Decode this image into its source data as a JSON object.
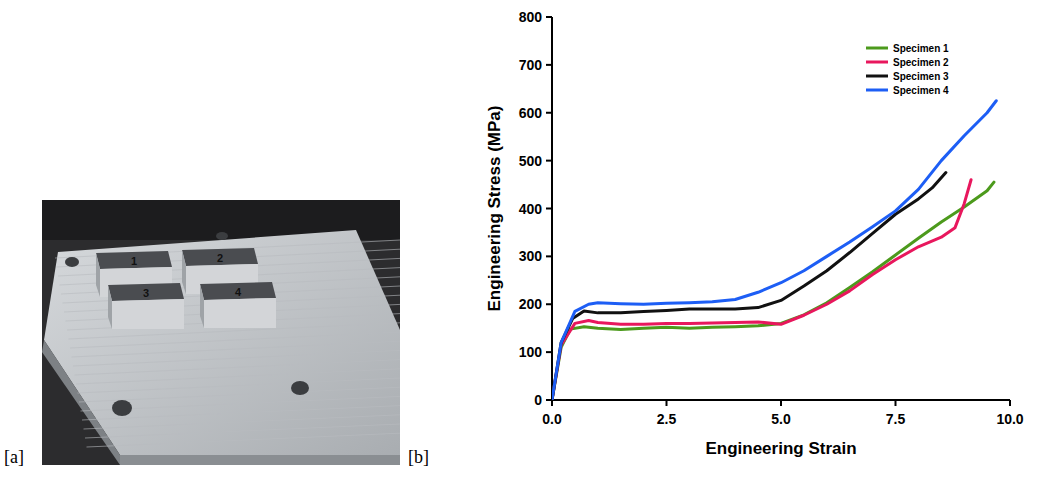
{
  "panels": {
    "a": {
      "label": "[a]",
      "specimen_labels": [
        "1",
        "2",
        "3",
        "4"
      ]
    },
    "b": {
      "label": "[b]"
    }
  },
  "chart_data": {
    "type": "line",
    "x_label": "Engineering Strain",
    "y_label": "Engineering Stress (MPa)",
    "xlim": [
      0,
      10
    ],
    "xticks": [
      {
        "value": 0,
        "label": "0.0"
      },
      2.5,
      {
        "value": 5,
        "label": "5.0"
      },
      7.5,
      {
        "value": 10,
        "label": "10.0"
      }
    ],
    "ylim": [
      0,
      800
    ],
    "yticks": [
      0,
      100,
      200,
      300,
      400,
      500,
      600,
      700,
      800
    ],
    "grid": false,
    "legend": "upper right",
    "series": [
      {
        "name": "Specimen 1",
        "color": "#4c9a1c",
        "x": [
          0,
          0.2,
          0.4,
          0.7,
          1.0,
          1.5,
          2.0,
          2.5,
          3.0,
          3.5,
          4.0,
          4.5,
          5.0,
          5.5,
          6.0,
          6.5,
          7.0,
          7.5,
          8.0,
          8.5,
          9.0,
          9.5,
          9.65
        ],
        "values": [
          0,
          110,
          148,
          153,
          150,
          147,
          150,
          152,
          150,
          152,
          153,
          155,
          160,
          178,
          203,
          235,
          268,
          303,
          338,
          372,
          403,
          437,
          455
        ]
      },
      {
        "name": "Specimen 2",
        "color": "#e8175d",
        "x": [
          0,
          0.2,
          0.5,
          0.8,
          1.0,
          1.5,
          2.0,
          2.5,
          3.0,
          3.5,
          4.0,
          4.5,
          5.0,
          5.5,
          6.0,
          6.5,
          7.0,
          7.5,
          8.0,
          8.5,
          8.8,
          9.0,
          9.15
        ],
        "values": [
          0,
          115,
          160,
          166,
          162,
          158,
          158,
          160,
          160,
          161,
          162,
          163,
          158,
          177,
          200,
          228,
          262,
          293,
          320,
          340,
          360,
          410,
          460
        ]
      },
      {
        "name": "Specimen 3",
        "color": "#111111",
        "x": [
          0,
          0.2,
          0.45,
          0.7,
          1.0,
          1.5,
          2.0,
          2.5,
          3.0,
          3.5,
          4.0,
          4.5,
          5.0,
          5.5,
          6.0,
          6.5,
          7.0,
          7.5,
          8.0,
          8.3,
          8.6
        ],
        "values": [
          0,
          120,
          170,
          186,
          182,
          182,
          185,
          187,
          190,
          190,
          190,
          193,
          208,
          238,
          270,
          308,
          348,
          388,
          420,
          443,
          475
        ]
      },
      {
        "name": "Specimen 4",
        "color": "#1d5ef5",
        "x": [
          0,
          0.2,
          0.5,
          0.8,
          1.0,
          1.5,
          2.0,
          2.5,
          3.0,
          3.5,
          4.0,
          4.5,
          5.0,
          5.5,
          6.0,
          6.5,
          7.0,
          7.5,
          8.0,
          8.5,
          9.0,
          9.5,
          9.7
        ],
        "values": [
          0,
          120,
          185,
          200,
          203,
          201,
          200,
          202,
          203,
          205,
          210,
          225,
          245,
          270,
          300,
          330,
          362,
          395,
          440,
          500,
          552,
          600,
          625
        ]
      }
    ]
  }
}
